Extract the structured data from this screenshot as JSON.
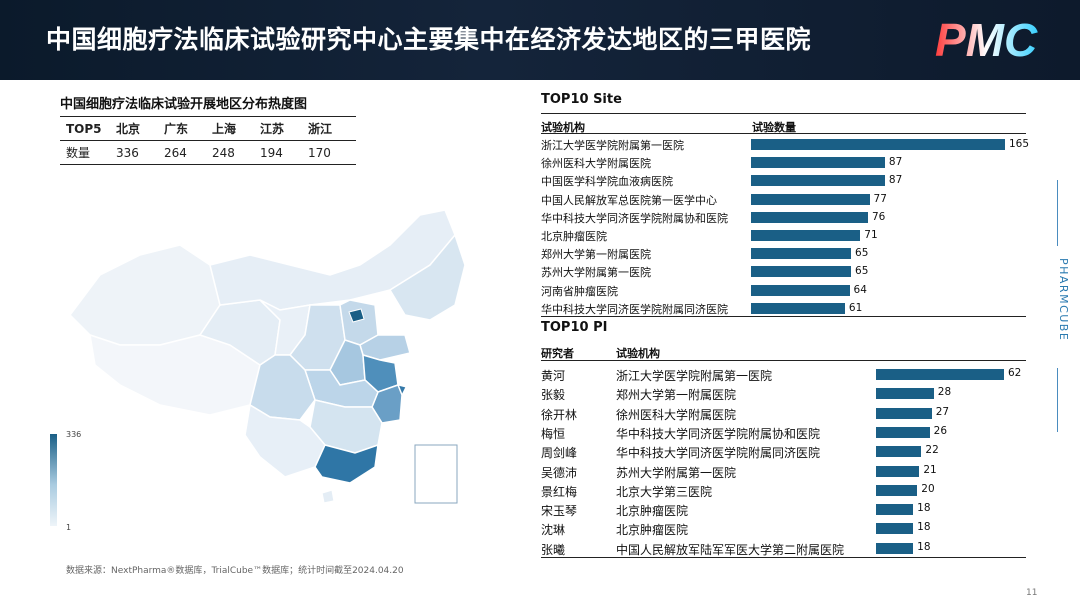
{
  "header": {
    "title": "中国细胞疗法临床试验研究中心主要集中在经济发达地区的三甲医院",
    "logo_text": "PMC"
  },
  "heatmap": {
    "title": "中国细胞疗法临床试验开展地区分布热度图",
    "row_header": "TOP5",
    "row_label": "数量",
    "regions": [
      "北京",
      "广东",
      "上海",
      "江苏",
      "浙江"
    ],
    "counts": [
      "336",
      "264",
      "248",
      "194",
      "170"
    ],
    "legend_max": "336",
    "legend_min": "1"
  },
  "chart_data": [
    {
      "type": "bar",
      "title": "TOP10 Site",
      "category_header": "试验机构",
      "value_header": "试验数量",
      "categories": [
        "浙江大学医学院附属第一医院",
        "徐州医科大学附属医院",
        "中国医学科学院血液病医院",
        "中国人民解放军总医院第一医学中心",
        "华中科技大学同济医学院附属协和医院",
        "北京肿瘤医院",
        "郑州大学第一附属医院",
        "苏州大学附属第一医院",
        "河南省肿瘤医院",
        "华中科技大学同济医学院附属同济医院"
      ],
      "values": [
        165,
        87,
        87,
        77,
        76,
        71,
        65,
        65,
        64,
        61
      ]
    },
    {
      "type": "bar",
      "title": "TOP10 PI",
      "category_header": "研究者",
      "institution_header": "试验机构",
      "categories": [
        "黄河",
        "张毅",
        "徐开林",
        "梅恒",
        "周剑峰",
        "吴德沛",
        "景红梅",
        "宋玉琴",
        "沈琳",
        "张曦"
      ],
      "institutions": [
        "浙江大学医学院附属第一医院",
        "郑州大学第一附属医院",
        "徐州医科大学附属医院",
        "华中科技大学同济医学院附属协和医院",
        "华中科技大学同济医学院附属同济医院",
        "苏州大学附属第一医院",
        "北京大学第三医院",
        "北京肿瘤医院",
        "北京肿瘤医院",
        "中国人民解放军陆军军医大学第二附属医院"
      ],
      "values": [
        62,
        28,
        27,
        26,
        22,
        21,
        20,
        18,
        18,
        18
      ]
    }
  ],
  "colors": {
    "bar": "#1a5f86",
    "header_bg": "#0d1b2e"
  },
  "footer": {
    "source": "数据来源：NextPharma®数据库，TrialCube™数据库；统计时间截至2024.04.20",
    "page": "11"
  },
  "side": {
    "brand": "PHARMCUBE"
  }
}
